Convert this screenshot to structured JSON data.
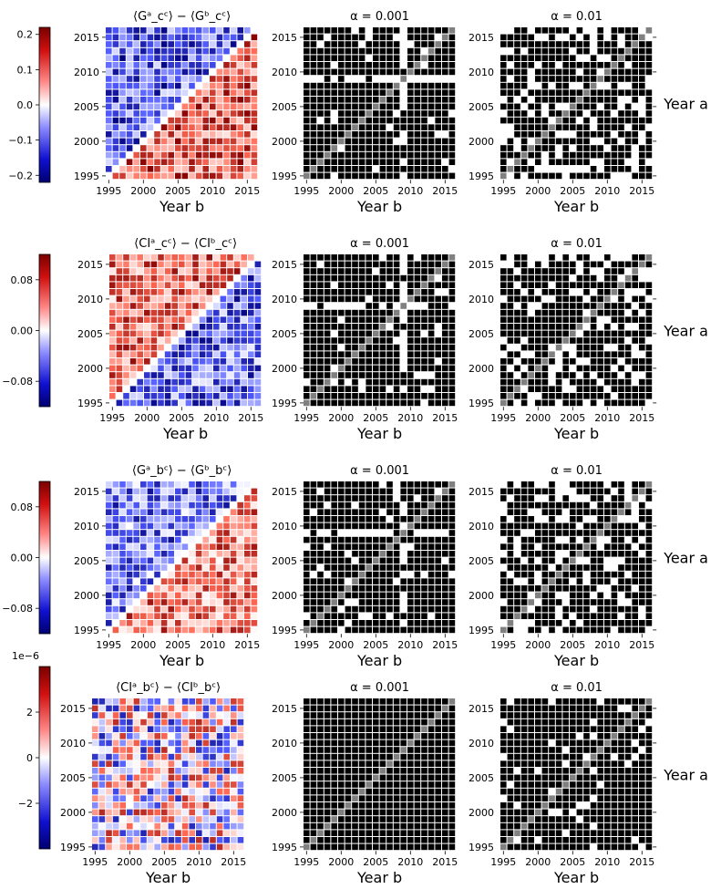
{
  "figure": {
    "x_axis_label": "Year b",
    "y_axis_label": "Year a"
  },
  "chart_data": [
    {
      "type": "heatmap",
      "row": 1,
      "title": "⟨Gᵃ_cᶜ⟩ − ⟨Gᵇ_cᶜ⟩",
      "colorbar": {
        "vmin": -0.22,
        "vmax": 0.22,
        "ticks": [
          0.2,
          0.1,
          0.0,
          -0.1,
          -0.2
        ],
        "labels": [
          "0.2",
          "0.1",
          "0.0",
          "−0.1",
          "−0.2"
        ],
        "exponent": ""
      },
      "significance_titles": [
        "α = 0.001",
        "α = 0.01"
      ],
      "years": [
        1995,
        1996,
        1997,
        1998,
        1999,
        2000,
        2001,
        2002,
        2003,
        2004,
        2005,
        2006,
        2007,
        2008,
        2009,
        2010,
        2011,
        2012,
        2013,
        2014,
        2015,
        2016
      ]
    },
    {
      "type": "heatmap",
      "row": 2,
      "title": "⟨CIᵃ_cᶜ⟩ − ⟨CIᵇ_cᶜ⟩",
      "colorbar": {
        "vmin": -0.12,
        "vmax": 0.12,
        "ticks": [
          0.08,
          0.0,
          -0.08
        ],
        "labels": [
          "0.08",
          "0.00",
          "−0.08"
        ],
        "exponent": ""
      },
      "significance_titles": [
        "α = 0.001",
        "α = 0.01"
      ],
      "years": [
        1995,
        1996,
        1997,
        1998,
        1999,
        2000,
        2001,
        2002,
        2003,
        2004,
        2005,
        2006,
        2007,
        2008,
        2009,
        2010,
        2011,
        2012,
        2013,
        2014,
        2015,
        2016
      ]
    },
    {
      "type": "heatmap",
      "row": 3,
      "title": "⟨Gᵃ_bᶜ⟩ − ⟨Gᵇ_bᶜ⟩",
      "colorbar": {
        "vmin": -0.12,
        "vmax": 0.12,
        "ticks": [
          0.08,
          0.0,
          -0.08
        ],
        "labels": [
          "0.08",
          "0.00",
          "−0.08"
        ],
        "exponent": ""
      },
      "significance_titles": [
        "α = 0.001",
        "α = 0.01"
      ],
      "years": [
        1995,
        1996,
        1997,
        1998,
        1999,
        2000,
        2001,
        2002,
        2003,
        2004,
        2005,
        2006,
        2007,
        2008,
        2009,
        2010,
        2011,
        2012,
        2013,
        2014,
        2015,
        2016
      ]
    },
    {
      "type": "heatmap",
      "row": 4,
      "title": "⟨CIᵃ_bᶜ⟩ − ⟨CIᵇ_bᶜ⟩",
      "colorbar": {
        "vmin": -4,
        "vmax": 4,
        "ticks": [
          2,
          0,
          -2
        ],
        "labels": [
          "2",
          "0",
          "−2"
        ],
        "exponent": "1e−6"
      },
      "significance_titles": [
        "α = 0.001",
        "α = 0.01"
      ],
      "years": [
        1995,
        1996,
        1997,
        1998,
        1999,
        2000,
        2001,
        2002,
        2003,
        2004,
        2005,
        2006,
        2007,
        2008,
        2009,
        2010,
        2011,
        2012,
        2013,
        2014,
        2015,
        2016
      ]
    }
  ]
}
